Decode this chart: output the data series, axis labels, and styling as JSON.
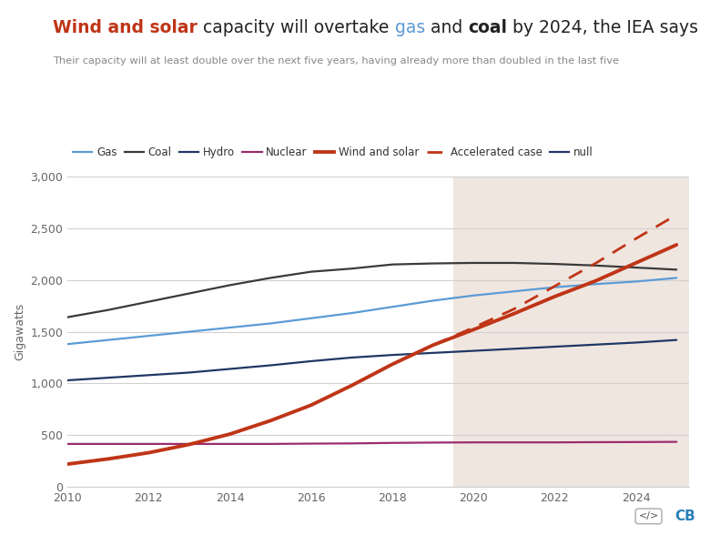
{
  "subtitle": "Their capacity will at least double over the next five years, having already more than doubled in the last five",
  "ylabel": "Gigawatts",
  "background_color": "#ffffff",
  "forecast_start": 2019.5,
  "forecast_bg": "#f0e6e0",
  "gas_years": [
    2010,
    2011,
    2012,
    2013,
    2014,
    2015,
    2016,
    2017,
    2018,
    2019,
    2020,
    2021,
    2022,
    2023,
    2024,
    2025
  ],
  "gas": [
    1380,
    1420,
    1460,
    1500,
    1540,
    1580,
    1630,
    1680,
    1740,
    1800,
    1850,
    1890,
    1930,
    1960,
    1985,
    2020
  ],
  "coal_years": [
    2010,
    2011,
    2012,
    2013,
    2014,
    2015,
    2016,
    2017,
    2018,
    2019,
    2020,
    2021,
    2022,
    2023,
    2024,
    2025
  ],
  "coal": [
    1640,
    1710,
    1790,
    1870,
    1950,
    2020,
    2080,
    2110,
    2150,
    2160,
    2165,
    2165,
    2155,
    2140,
    2120,
    2100
  ],
  "hydro_years": [
    2010,
    2011,
    2012,
    2013,
    2014,
    2015,
    2016,
    2017,
    2018,
    2019,
    2020,
    2021,
    2022,
    2023,
    2024,
    2025
  ],
  "hydro": [
    1030,
    1055,
    1080,
    1105,
    1140,
    1175,
    1215,
    1250,
    1275,
    1295,
    1315,
    1335,
    1355,
    1375,
    1395,
    1420
  ],
  "nuclear_years": [
    2010,
    2011,
    2012,
    2013,
    2014,
    2015,
    2016,
    2017,
    2018,
    2019,
    2020,
    2021,
    2022,
    2023,
    2024,
    2025
  ],
  "nuclear": [
    415,
    415,
    415,
    415,
    415,
    415,
    418,
    420,
    425,
    428,
    430,
    430,
    430,
    432,
    433,
    435
  ],
  "wind_solar_years": [
    2010,
    2011,
    2012,
    2013,
    2014,
    2015,
    2016,
    2017,
    2018,
    2019,
    2020,
    2021,
    2022,
    2023,
    2024,
    2025
  ],
  "wind_solar": [
    220,
    270,
    330,
    410,
    510,
    640,
    790,
    980,
    1185,
    1370,
    1520,
    1675,
    1840,
    1990,
    2165,
    2340
  ],
  "accel_years": [
    2019,
    2020,
    2021,
    2022,
    2023,
    2024,
    2025
  ],
  "accel": [
    1370,
    1540,
    1720,
    1940,
    2160,
    2400,
    2630
  ],
  "gas_color": "#5b9bd5",
  "coal_color": "#3a3a3a",
  "hydro_color": "#1f3864",
  "nuclear_color": "#9b2c6e",
  "wind_solar_color": "#bf3517",
  "accel_color": "#bf3517",
  "null_color": "#1f3864",
  "ylim": [
    0,
    3000
  ],
  "xlim": [
    2010,
    2025.3
  ],
  "yticks": [
    0,
    500,
    1000,
    1500,
    2000,
    2500,
    3000
  ],
  "xticks": [
    2010,
    2012,
    2014,
    2016,
    2018,
    2020,
    2022,
    2024
  ]
}
